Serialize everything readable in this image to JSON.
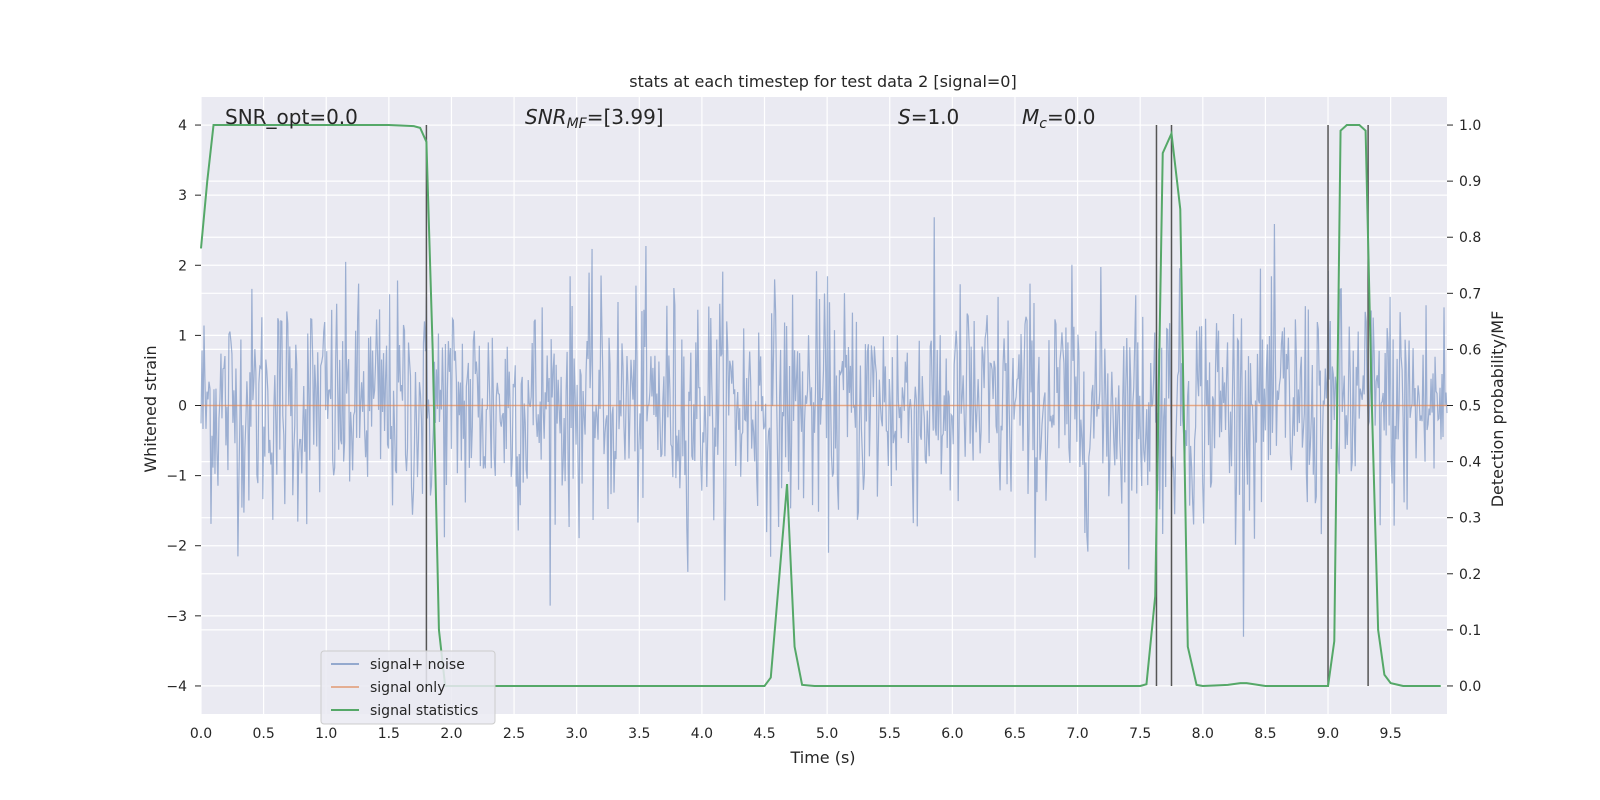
{
  "chart_data": {
    "type": "line",
    "title": "stats at each timestep for test data 2 [signal=0]",
    "xlabel": "Time (s)",
    "ylabel": "Whitened strain",
    "ylabel_right": "Detection probability/MF",
    "xlim": [
      0.0,
      9.95
    ],
    "ylim": [
      -4.4,
      4.4
    ],
    "ylim_right": [
      -0.05,
      1.05
    ],
    "x_ticks": [
      "0.0",
      "0.5",
      "1.0",
      "1.5",
      "2.0",
      "2.5",
      "3.0",
      "3.5",
      "4.0",
      "4.5",
      "5.0",
      "5.5",
      "6.0",
      "6.5",
      "7.0",
      "7.5",
      "8.0",
      "8.5",
      "9.0",
      "9.5"
    ],
    "y_ticks": [
      "−4",
      "−3",
      "−2",
      "−1",
      "0",
      "1",
      "2",
      "3",
      "4"
    ],
    "y_ticks_right": [
      "0.0",
      "0.1",
      "0.2",
      "0.3",
      "0.4",
      "0.5",
      "0.6",
      "0.7",
      "0.8",
      "0.9",
      "1.0"
    ],
    "annotations": {
      "snr_opt": "SNR_opt=0.0",
      "snr_mf_base": "SNR",
      "snr_mf_sub": "MF",
      "snr_mf_value": "=[3.99]",
      "s_symbol": "S",
      "s_value": "=1.0",
      "mc_base": "M",
      "mc_sub": "c",
      "mc_value": "=0.0"
    },
    "series": [
      {
        "name": "signal+ noise",
        "color": "#4c72b0",
        "description_values": "white Gaussian noise, std ≈ 0.8"
      },
      {
        "name": "signal only",
        "color": "#dd8452",
        "values_constant": 0
      },
      {
        "name": "signal statistics",
        "color": "#55a868",
        "axis": "right",
        "x": [
          0.0,
          0.05,
          0.1,
          0.2,
          0.5,
          1.0,
          1.5,
          1.7,
          1.75,
          1.8,
          1.85,
          1.9,
          1.95,
          2.0,
          2.5,
          3.0,
          3.5,
          4.0,
          4.5,
          4.55,
          4.62,
          4.68,
          4.74,
          4.8,
          4.9,
          5.5,
          6.0,
          6.5,
          7.0,
          7.5,
          7.55,
          7.62,
          7.68,
          7.75,
          7.82,
          7.88,
          7.95,
          8.0,
          8.2,
          8.3,
          8.35,
          8.5,
          9.0,
          9.05,
          9.1,
          9.15,
          9.25,
          9.3,
          9.35,
          9.4,
          9.45,
          9.5,
          9.6,
          9.9
        ],
        "values": [
          0.78,
          0.9,
          1.0,
          1.0,
          1.0,
          1.0,
          1.0,
          0.998,
          0.995,
          0.97,
          0.6,
          0.1,
          0.0,
          0.0,
          0.0,
          0.0,
          0.0,
          0.0,
          0.0,
          0.015,
          0.2,
          0.36,
          0.07,
          0.002,
          0.0,
          0.0,
          0.0,
          0.0,
          0.0,
          0.0,
          0.003,
          0.16,
          0.95,
          0.985,
          0.85,
          0.07,
          0.002,
          0.0,
          0.002,
          0.005,
          0.005,
          0.0,
          0.0,
          0.08,
          0.99,
          1.0,
          1.0,
          0.99,
          0.5,
          0.1,
          0.02,
          0.005,
          0.0,
          0.0
        ]
      }
    ],
    "vertical_lines_x": [
      1.8,
      7.63,
      7.75,
      9.0,
      9.32
    ],
    "legend": {
      "placement": "lower-left",
      "entries": [
        "signal+ noise",
        "signal only",
        "signal statistics"
      ]
    },
    "background": "#eaeaf2",
    "grid": true
  }
}
